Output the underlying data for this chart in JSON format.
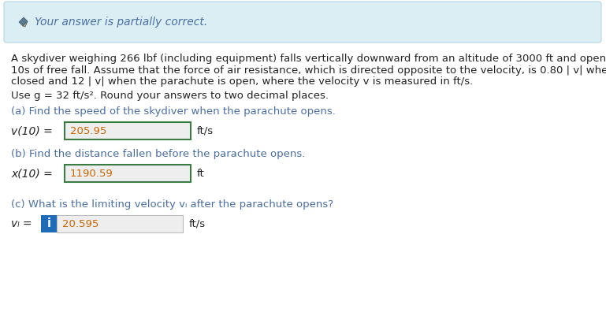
{
  "banner_text": "Your answer is partially correct.",
  "banner_bg": "#daeef3",
  "banner_border": "#b8d8e8",
  "body_bg": "#ffffff",
  "problem_line1": "A skydiver weighing 266 lbf (including equipment) falls vertically downward from an altitude of 3000 ft and opens the parachute after",
  "problem_line2": "10s of free fall. Assume that the force of air resistance, which is directed opposite to the velocity, is 0.80 | v| when the parachute is",
  "problem_line3": "closed and 12 | v| when the parachute is open, where the velocity v is measured in ft/s.",
  "use_g_text": "Use g = 32 ft/s². Round your answers to two decimal places.",
  "part_a_label": "(a) Find the speed of the skydiver when the parachute opens.",
  "part_a_eq": "v(10) =",
  "part_a_val": "205.95",
  "part_a_unit": "ft/s",
  "part_b_label": "(b) Find the distance fallen before the parachute opens.",
  "part_b_eq": "x(10) =",
  "part_b_val": "1190.59",
  "part_b_unit": "ft",
  "part_c_label": "(c) What is the limiting velocity vₗ after the parachute opens?",
  "part_c_eq": "vₗ =",
  "part_c_val": "20.595",
  "part_c_unit": "ft/s",
  "box_border_correct": "#3a7d44",
  "box_border_incorrect": "#aaaaaa",
  "indicator_bg": "#1e6bb8",
  "indicator_text": "i",
  "text_color": "#222222",
  "label_color": "#4a6fa5",
  "input_bg": "#eeeeee",
  "input_text_color": "#cc6600",
  "banner_text_color": "#4a6fa5",
  "fs_body": 9.5,
  "fs_label": 9.5
}
